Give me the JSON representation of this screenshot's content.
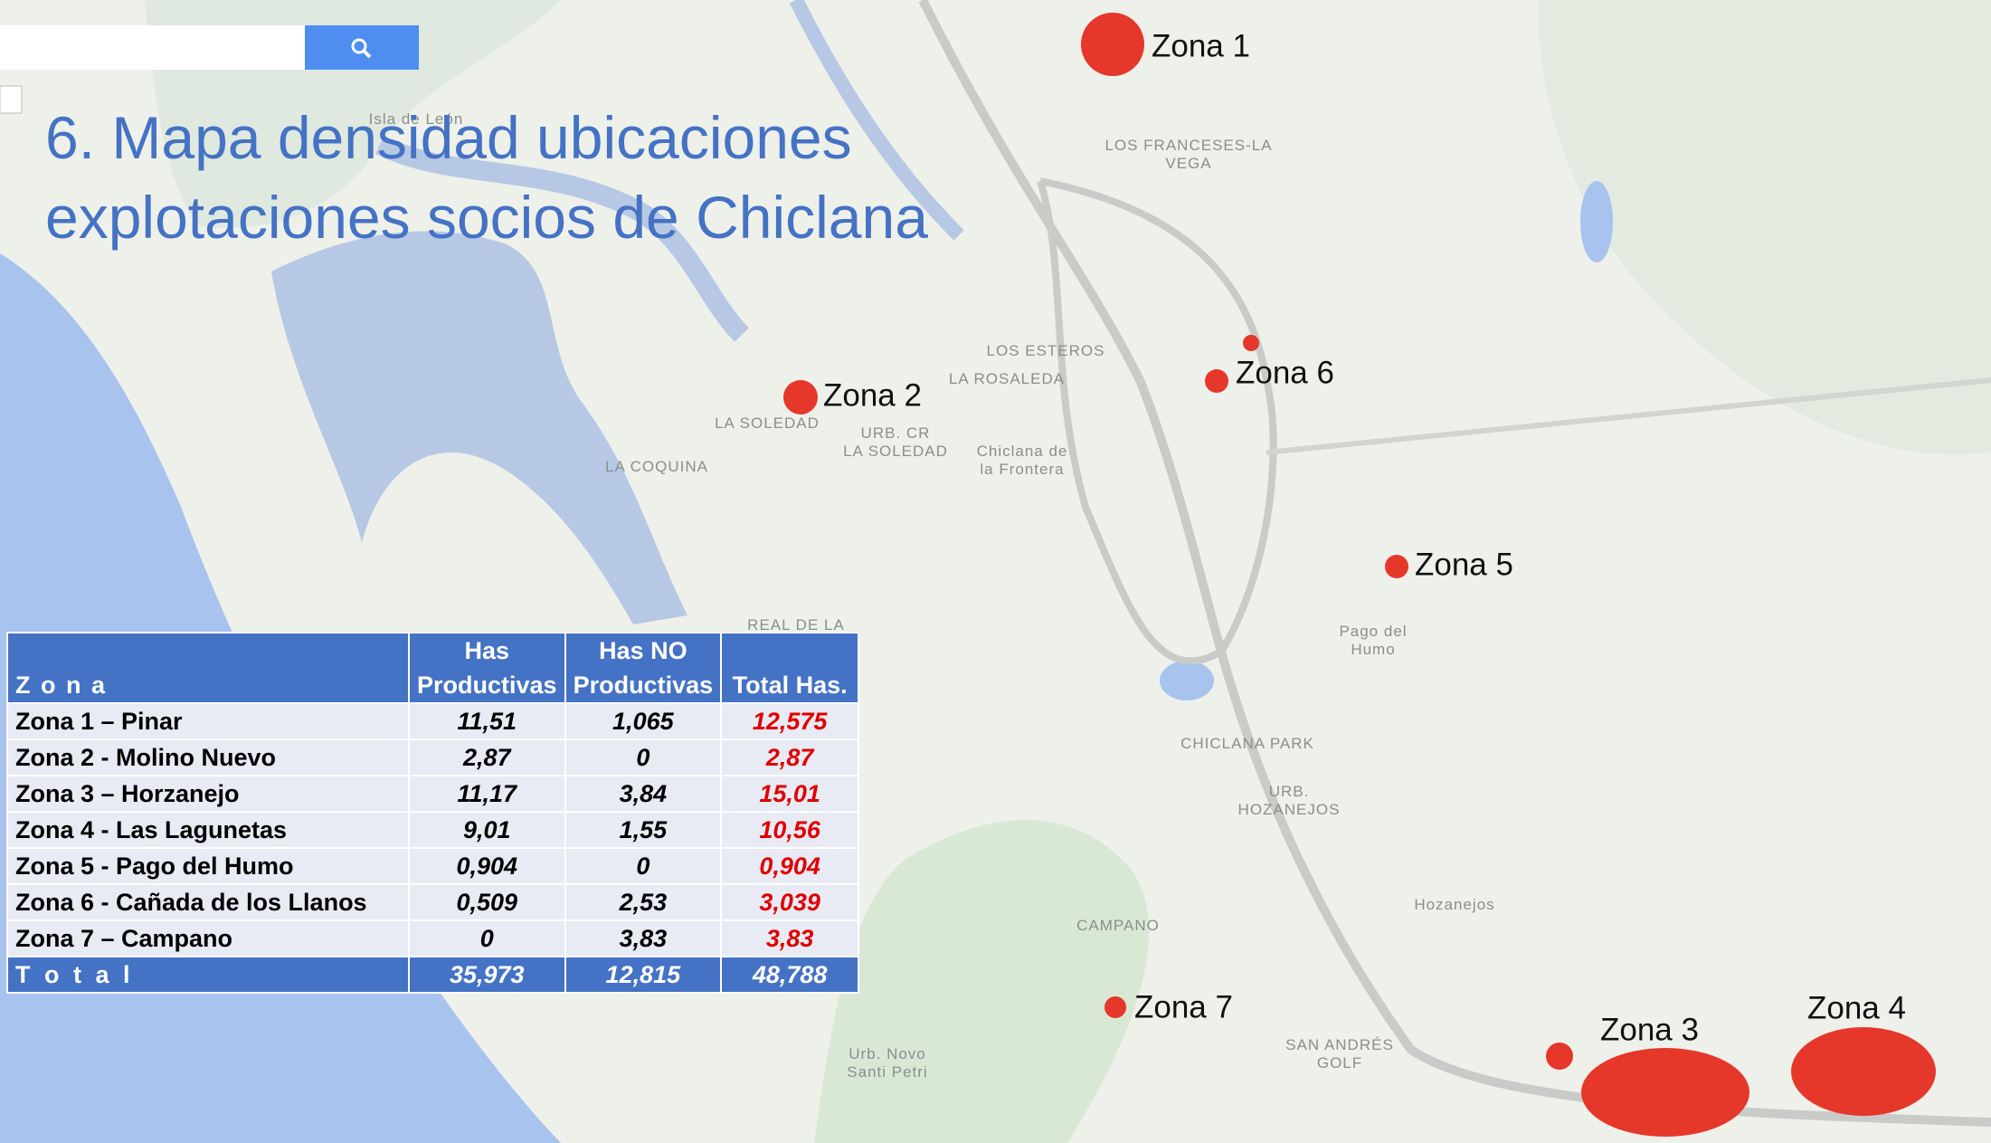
{
  "title": [
    "6. Mapa densidad ubicaciones",
    "explotaciones socios de Chiclana"
  ],
  "zones": [
    "Zona 1",
    "Zona 2",
    "Zona 3",
    "Zona 4",
    "Zona 5",
    "Zona 6",
    "Zona 7"
  ],
  "places": [
    [
      "Isla de León"
    ],
    [
      "LOS FRANCESES-LA",
      "VEGA"
    ],
    [
      "LOS ESTEROS"
    ],
    [
      "LA ROSALEDA"
    ],
    [
      "LA SOLEDAD"
    ],
    [
      "URB. CR",
      "LA SOLEDAD"
    ],
    [
      "Chiclana de",
      "la Frontera"
    ],
    [
      "LA COQUINA"
    ],
    [
      "REAL DE LA"
    ],
    [
      "Pago del",
      "Humo"
    ],
    [
      "CHICLANA PARK"
    ],
    [
      "URB.",
      "HOZANEJOS"
    ],
    [
      "Hozanejos"
    ],
    [
      "CAMPANO"
    ],
    [
      "SAN ANDRÉS",
      "GOLF"
    ],
    [
      "Urb. Novo",
      "Santi Petri"
    ]
  ],
  "table": {
    "header": [
      [
        "Z o n a"
      ],
      [
        "Has",
        "Productivas"
      ],
      [
        "Has NO",
        "Productivas"
      ],
      [
        "Total Has."
      ]
    ],
    "rows": [
      [
        "Zona 1 – Pinar",
        "11,51",
        "1,065",
        "12,575"
      ],
      [
        "Zona 2 - Molino Nuevo",
        "2,87",
        "0",
        "2,87"
      ],
      [
        "Zona 3 – Horzanejo",
        "11,17",
        "3,84",
        "15,01"
      ],
      [
        "Zona 4 - Las Lagunetas",
        "9,01",
        "1,55",
        "10,56"
      ],
      [
        "Zona 5 - Pago del Humo",
        "0,904",
        "0",
        "0,904"
      ],
      [
        "Zona 6 - Cañada de los Llanos",
        "0,509",
        "2,53",
        "3,039"
      ],
      [
        "Zona 7 – Campano",
        "0",
        "3,83",
        "3,83"
      ]
    ],
    "total": [
      "T o t a l",
      "35,973",
      "12,815",
      "48,788"
    ]
  }
}
